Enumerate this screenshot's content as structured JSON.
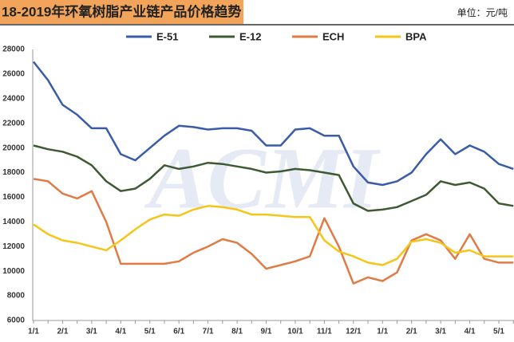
{
  "chart_data": {
    "type": "line",
    "title": "18-2019年环氧树脂产业链产品价格趋势",
    "unit_note": "单位：元/吨",
    "watermark": "ACMI",
    "categories": [
      "1/1",
      null,
      "2/1",
      null,
      "3/1",
      null,
      "4/1",
      null,
      "5/1",
      null,
      "6/1",
      null,
      "7/1",
      null,
      "8/1",
      null,
      "9/1",
      null,
      "10/1",
      null,
      "11/1",
      null,
      "12/1",
      null,
      "1/1",
      null,
      "2/1",
      null,
      "3/1",
      null,
      "4/1",
      null,
      "5/1",
      null
    ],
    "series": [
      {
        "name": "E-51",
        "color": "#3a5ca8",
        "values": [
          27000,
          25500,
          23500,
          22700,
          21600,
          21600,
          19500,
          19000,
          20000,
          21000,
          21800,
          21700,
          21500,
          21600,
          21600,
          21400,
          20200,
          20200,
          21500,
          21600,
          21000,
          21000,
          18500,
          17200,
          17000,
          17300,
          18000,
          19500,
          20700,
          19500,
          20200,
          19700,
          18700,
          18300
        ]
      },
      {
        "name": "E-12",
        "color": "#3d5a32",
        "values": [
          20200,
          19900,
          19700,
          19300,
          18600,
          17300,
          16500,
          16700,
          17500,
          18600,
          18300,
          18500,
          18800,
          18700,
          18500,
          18300,
          18000,
          18100,
          18300,
          18200,
          18000,
          17800,
          15500,
          14900,
          15000,
          15200,
          15700,
          16200,
          17300,
          17000,
          17200,
          16700,
          15500,
          15300
        ]
      },
      {
        "name": "ECH",
        "color": "#e07b45",
        "values": [
          17500,
          17300,
          16300,
          15900,
          16500,
          14000,
          10600,
          10600,
          10600,
          10600,
          10800,
          11500,
          12000,
          12600,
          12300,
          11400,
          10200,
          10500,
          10800,
          11200,
          14300,
          12000,
          9000,
          9500,
          9200,
          9900,
          12500,
          13000,
          12500,
          11000,
          13000,
          11000,
          10700,
          10700
        ]
      },
      {
        "name": "BPA",
        "color": "#f5c518",
        "values": [
          13800,
          13000,
          12500,
          12300,
          12000,
          11700,
          12500,
          13400,
          14200,
          14600,
          14500,
          15000,
          15300,
          15200,
          15000,
          14600,
          14600,
          14500,
          14400,
          14400,
          12500,
          11600,
          11200,
          10700,
          10500,
          11000,
          12400,
          12600,
          12300,
          11500,
          11700,
          11200,
          11200,
          11200
        ]
      }
    ],
    "ylim": [
      6000,
      28000
    ],
    "yticks": [
      6000,
      8000,
      10000,
      12000,
      14000,
      16000,
      18000,
      20000,
      22000,
      24000,
      26000,
      28000
    ],
    "grid": false
  }
}
